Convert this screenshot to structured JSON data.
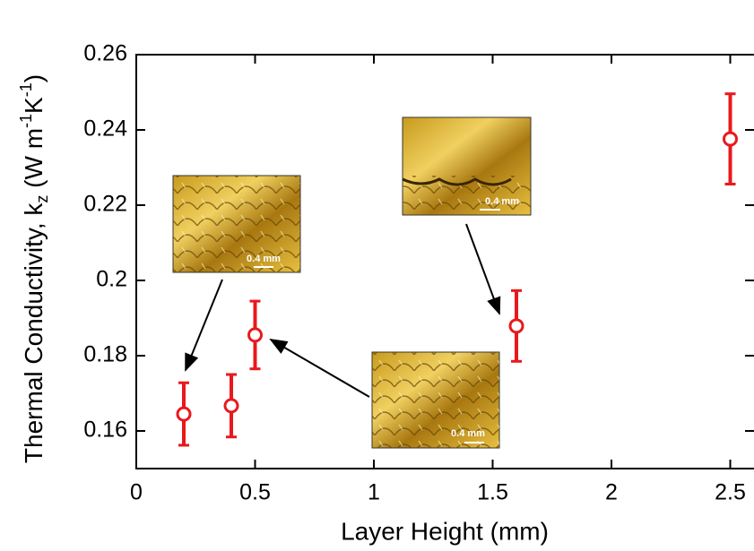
{
  "chart_data": {
    "type": "scatter",
    "x_label": "Layer Height (mm)",
    "y_label_parts": [
      "Thermal Conductivity, k",
      "z",
      " (W m",
      "-1",
      "K",
      "-1",
      ")"
    ],
    "x": [
      0.2,
      0.4,
      0.5,
      1.6,
      2.5
    ],
    "series": [
      {
        "color": "#e8191c",
        "values": [
          0.1645,
          0.1667,
          0.1855,
          0.1879,
          0.2376
        ],
        "errors": [
          0.0083,
          0.0083,
          0.009,
          0.0094,
          0.012
        ]
      }
    ],
    "xlim": [
      0,
      2.6
    ],
    "xticks": [
      0,
      0.5,
      1,
      1.5,
      2,
      2.5
    ],
    "ylim": [
      0.15,
      0.26
    ],
    "yticks": [
      0.16,
      0.18,
      0.2,
      0.22,
      0.24,
      0.26
    ],
    "grid": false,
    "insets": [
      {
        "scale_label": "0.4 mm"
      },
      {
        "scale_label": "0.4 mm"
      },
      {
        "scale_label": "0.4 mm"
      }
    ]
  }
}
